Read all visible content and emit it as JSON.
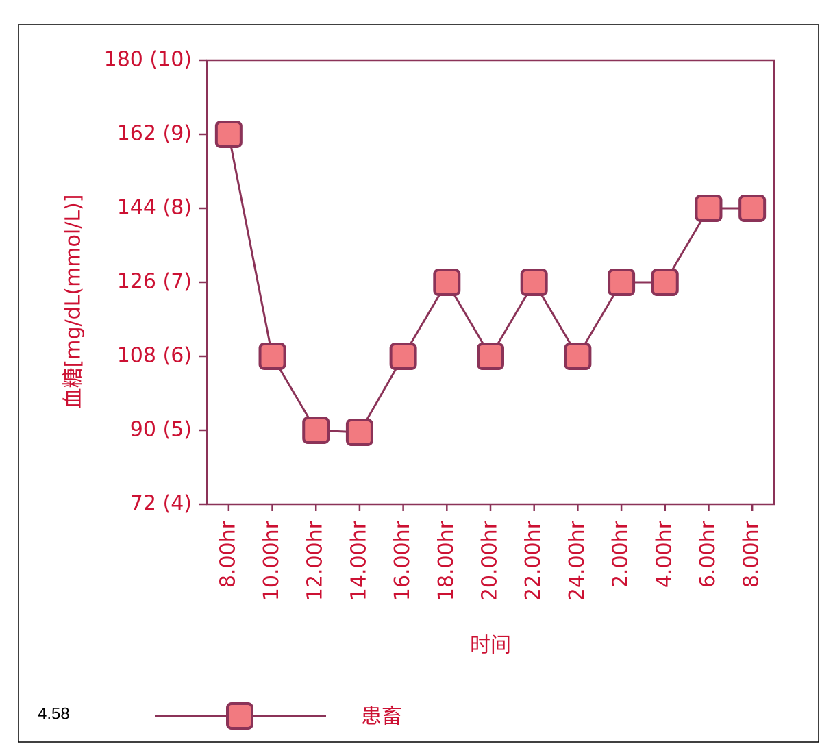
{
  "chart_data": {
    "type": "line",
    "categories": [
      "8.00hr",
      "10.00hr",
      "12.00hr",
      "14.00hr",
      "16.00hr",
      "18.00hr",
      "20.00hr",
      "22.00hr",
      "24.00hr",
      "2.00hr",
      "4.00hr",
      "6.00hr",
      "8.00hr"
    ],
    "series": [
      {
        "name": "患畜",
        "color": "#8b3358",
        "marker_color": "#f27a80",
        "values": [
          162,
          108,
          90,
          89.5,
          108,
          126,
          108,
          126,
          108,
          126,
          126,
          144,
          144
        ]
      }
    ],
    "ylim": [
      72,
      180
    ],
    "yticks": [
      {
        "value": 72,
        "label": "72 (4)"
      },
      {
        "value": 90,
        "label": "90 (5)"
      },
      {
        "value": 108,
        "label": "108 (6)"
      },
      {
        "value": 126,
        "label": "126 (7)"
      },
      {
        "value": 144,
        "label": "144 (8)"
      },
      {
        "value": 162,
        "label": "162 (9)"
      },
      {
        "value": 180,
        "label": "180 (10)"
      }
    ],
    "y_label": "血糖[mg/dL(mmol/L)]",
    "x_label": "时间",
    "figure_label": "4.58"
  }
}
